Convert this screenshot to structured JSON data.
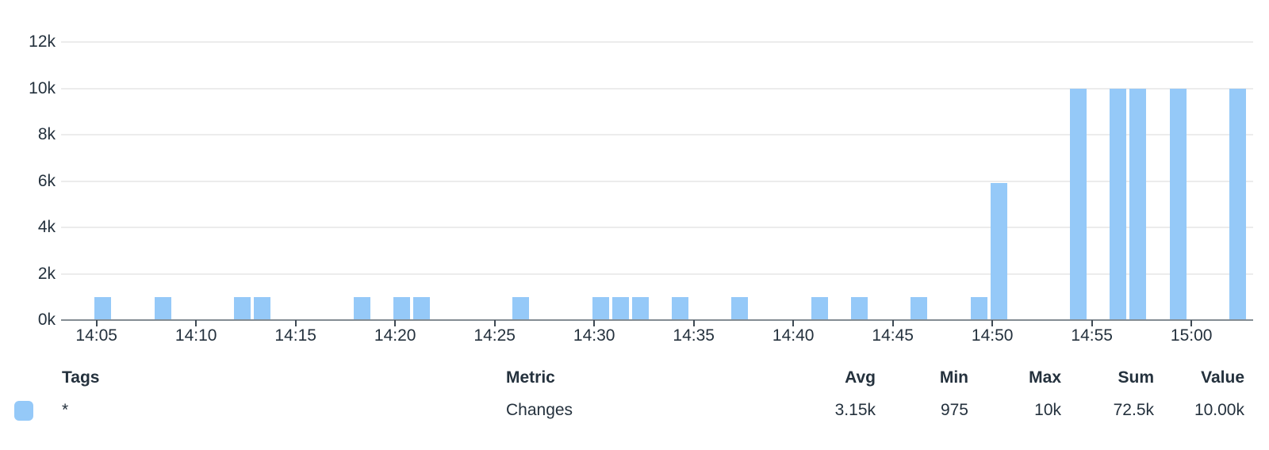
{
  "chart_data": {
    "type": "bar",
    "title": "",
    "xlabel": "",
    "ylabel": "",
    "ylim": [
      0,
      12000
    ],
    "grid": true,
    "y_tick_labels": [
      "12k",
      "10k",
      "8k",
      "6k",
      "4k",
      "2k",
      "0k"
    ],
    "x_tick_labels": [
      "14:05",
      "14:10",
      "14:15",
      "14:20",
      "14:25",
      "14:30",
      "14:35",
      "14:40",
      "14:45",
      "14:50",
      "14:55",
      "15:00"
    ],
    "series": [
      {
        "name": "Changes",
        "color": "#95c9f8",
        "points": [
          {
            "time": "14:05",
            "value": 975
          },
          {
            "time": "14:08",
            "value": 975
          },
          {
            "time": "14:12",
            "value": 975
          },
          {
            "time": "14:13",
            "value": 975
          },
          {
            "time": "14:18",
            "value": 975
          },
          {
            "time": "14:20",
            "value": 975
          },
          {
            "time": "14:21",
            "value": 975
          },
          {
            "time": "14:26",
            "value": 975
          },
          {
            "time": "14:30",
            "value": 975
          },
          {
            "time": "14:31",
            "value": 975
          },
          {
            "time": "14:32",
            "value": 975
          },
          {
            "time": "14:34",
            "value": 975
          },
          {
            "time": "14:37",
            "value": 975
          },
          {
            "time": "14:41",
            "value": 975
          },
          {
            "time": "14:43",
            "value": 975
          },
          {
            "time": "14:46",
            "value": 975
          },
          {
            "time": "14:49",
            "value": 975
          },
          {
            "time": "14:50",
            "value": 5925
          },
          {
            "time": "14:54",
            "value": 10000
          },
          {
            "time": "14:56",
            "value": 10000
          },
          {
            "time": "14:57",
            "value": 10000
          },
          {
            "time": "14:59",
            "value": 10000
          },
          {
            "time": "15:02",
            "value": 10000
          }
        ]
      }
    ]
  },
  "legend": {
    "headers": {
      "tags": "Tags",
      "metric": "Metric",
      "avg": "Avg",
      "min": "Min",
      "max": "Max",
      "sum": "Sum",
      "value": "Value"
    },
    "rows": [
      {
        "swatch_color": "#95c9f8",
        "tags": "*",
        "metric": "Changes",
        "avg": "3.15k",
        "min": "975",
        "max": "10k",
        "sum": "72.5k",
        "value": "10.00k"
      }
    ]
  },
  "colors": {
    "bar": "#95c9f8",
    "gridline": "#ececec",
    "axis_line": "#848c93",
    "tick_mark": "#3e4953",
    "text": "#24313d"
  }
}
